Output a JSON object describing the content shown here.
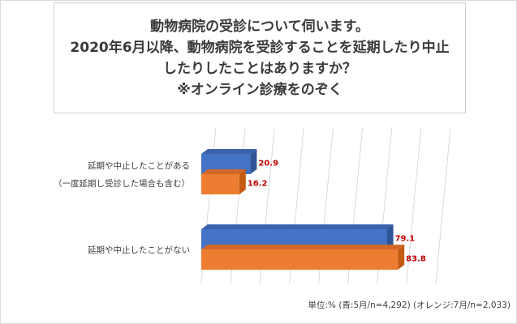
{
  "title_lines": [
    "動物病院の受診について伺います。",
    "2020年6月以降、動物病院を受診することを延期したり中止",
    "したりしたことはありますか？",
    "※オンライン診療をのぞく"
  ],
  "unit_note": "単位:% (青:5月/n=4,292) (オレンジ:7月/n=2,033)",
  "colors": {
    "series_1": "#4472c4",
    "series_1_top": "#3b63ad",
    "series_1_side": "#2f5597",
    "series_2": "#ed7d31",
    "series_2_top": "#d2692a",
    "series_2_side": "#c55a11",
    "value_label": "#c00000",
    "grid": "#d9d9d9"
  },
  "chart_data": {
    "type": "bar",
    "orientation": "horizontal",
    "three_d": true,
    "categories": [
      [
        "延期や中止したことがある",
        "（一度延期し受診した場合も含む）"
      ],
      [
        "延期や中止したことがない"
      ]
    ],
    "series": [
      {
        "values": [
          20.9,
          79.1
        ]
      },
      {
        "values": [
          16.2,
          83.8
        ]
      }
    ],
    "xlim": [
      0,
      100
    ],
    "grid": true,
    "data_labels": true,
    "legend": "none"
  }
}
